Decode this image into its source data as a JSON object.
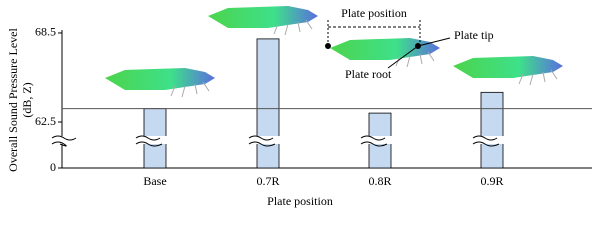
{
  "chart_data": {
    "type": "bar",
    "y_label": [
      "Overall Sound Pressure Level",
      "(dB, Z)"
    ],
    "x_label": "Plate position",
    "categories": [
      "Base",
      "0.7R",
      "0.8R",
      "0.9R"
    ],
    "values": [
      63.4,
      68.1,
      63.1,
      64.5
    ],
    "color": "#c5d9f0",
    "ylim": [
      0,
      68.7
    ],
    "yticks": [
      0,
      62.5,
      68.5
    ],
    "broken_axis": true,
    "reference_line": true,
    "annotations": {
      "span": "Plate position",
      "tip": "Plate tip",
      "root": "Plate root"
    }
  }
}
